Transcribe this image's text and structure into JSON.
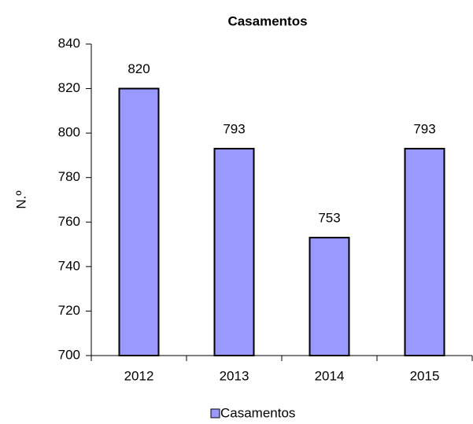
{
  "chart_data": {
    "type": "bar",
    "title": "Casamentos",
    "y_label": "N.º",
    "categories": [
      "2012",
      "2013",
      "2014",
      "2015"
    ],
    "series": [
      {
        "name": "Casamentos",
        "color": "#9999ff",
        "values": [
          820,
          793,
          753,
          793
        ]
      }
    ],
    "ylim": [
      700,
      840
    ],
    "yticks": [
      700,
      720,
      740,
      760,
      780,
      800,
      820,
      840
    ],
    "grid": false,
    "legend": "bottom",
    "data_labels": true
  }
}
